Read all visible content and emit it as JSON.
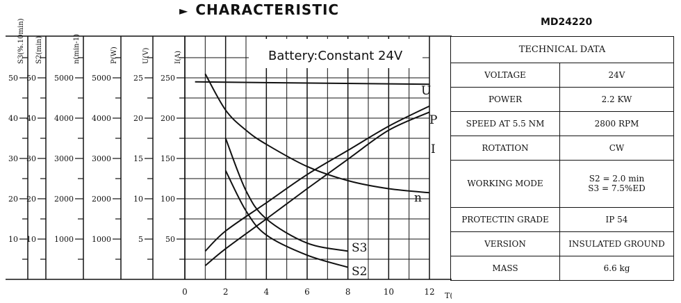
{
  "header": {
    "title": "CHARACTERISTIC",
    "model": "MD24220"
  },
  "spec_table": {
    "heading": "TECHNICAL DATA",
    "rows": [
      {
        "key": "VOLTAGE",
        "value": "24V"
      },
      {
        "key": "POWER",
        "value": "2.2 KW"
      },
      {
        "key": "SPEED AT 5.5 NM",
        "value": "2800 RPM"
      },
      {
        "key": "ROTATION",
        "value": "CW"
      },
      {
        "key": "WORKING MODE",
        "value": "S2 = 2.0 min",
        "value2": "S3 = 7.5%ED"
      },
      {
        "key": "PROTECTIN GRADE",
        "value": "IP 54"
      },
      {
        "key": "VERSION",
        "value": "INSULATED GROUND"
      },
      {
        "key": "MASS",
        "value": "6.6 kg"
      }
    ]
  },
  "chart_data": {
    "type": "line",
    "annotation": "Battery:Constant 24V",
    "xlabel": "T(N.m)",
    "xlim": [
      0,
      12
    ],
    "x_ticks": [
      0,
      2,
      4,
      6,
      8,
      10,
      12
    ],
    "axes": [
      {
        "label": "S3(%.10min)",
        "ticks": [
          10,
          20,
          30,
          40,
          50
        ]
      },
      {
        "label": "S2(min)",
        "ticks": [
          10,
          20,
          30,
          40,
          50
        ]
      },
      {
        "label": "n(min-1)",
        "ticks": [
          1000,
          2000,
          3000,
          4000,
          5000
        ]
      },
      {
        "label": "P(W)",
        "ticks": [
          1000,
          2000,
          3000,
          4000,
          5000
        ]
      },
      {
        "label": "U(V)",
        "ticks": [
          5,
          10,
          15,
          20,
          25
        ]
      },
      {
        "label": "I(A)",
        "ticks": [
          50,
          100,
          150,
          200,
          250
        ]
      }
    ],
    "series": [
      {
        "name": "U",
        "axis": "U(V)",
        "x": [
          0.5,
          12
        ],
        "y": [
          24.5,
          24.2
        ]
      },
      {
        "name": "P",
        "axis": "P(W)",
        "x": [
          1,
          2,
          4,
          6,
          8,
          10,
          12
        ],
        "y": [
          340,
          760,
          1500,
          2250,
          2980,
          3700,
          4150
        ]
      },
      {
        "name": "I",
        "axis": "I(A)",
        "x": [
          1,
          2,
          4,
          6,
          8,
          10,
          12
        ],
        "y": [
          35,
          60,
          95,
          130,
          160,
          190,
          215
        ]
      },
      {
        "name": "n",
        "axis": "n(min-1)",
        "x": [
          1,
          2,
          3,
          4,
          6,
          8,
          10,
          12
        ],
        "y": [
          5100,
          4200,
          3700,
          3350,
          2800,
          2450,
          2250,
          2150
        ]
      },
      {
        "name": "S3",
        "axis": "S3(%.10min)",
        "x": [
          2,
          3,
          4,
          6,
          8
        ],
        "y": [
          35,
          22,
          15,
          9,
          7
        ]
      },
      {
        "name": "S2",
        "axis": "S2(min)",
        "x": [
          2,
          3,
          4,
          6,
          8
        ],
        "y": [
          27,
          17,
          11,
          6,
          3
        ]
      }
    ]
  }
}
